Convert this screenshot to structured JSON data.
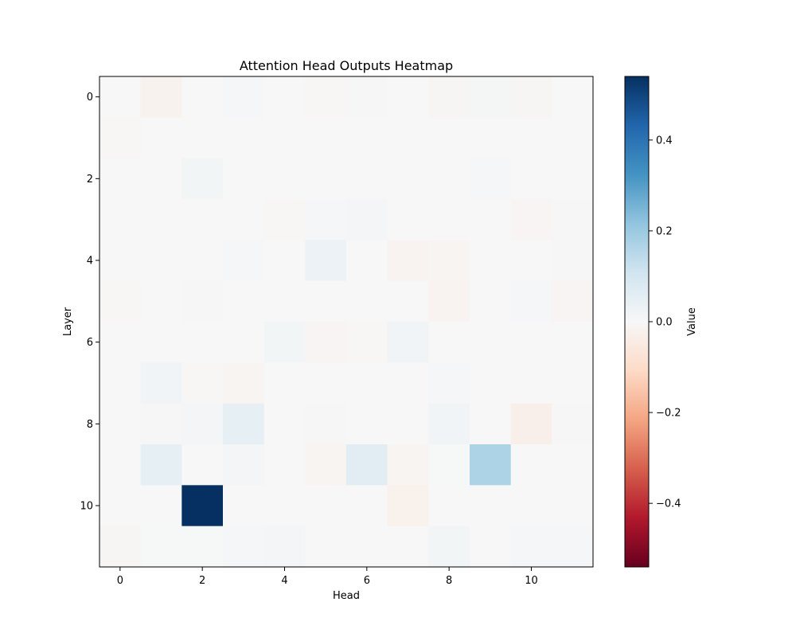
{
  "chart_data": {
    "type": "heatmap",
    "title": "Attention Head Outputs Heatmap",
    "xlabel": "Head",
    "ylabel": "Layer",
    "colorbar_label": "Value",
    "colormap": "RdBu",
    "vmin": -0.54,
    "vmax": 0.54,
    "x_tick_values": [
      0,
      2,
      4,
      6,
      8,
      10
    ],
    "y_tick_values": [
      0,
      2,
      4,
      6,
      8,
      10
    ],
    "x_tick_labels": [
      "0",
      "2",
      "4",
      "6",
      "8",
      "10"
    ],
    "y_tick_labels": [
      "0",
      "2",
      "4",
      "6",
      "8",
      "10"
    ],
    "colorbar_ticks": [
      0.4,
      0.2,
      0.0,
      -0.2,
      -0.4
    ],
    "colorbar_tick_labels": [
      "0.4",
      "0.2",
      "0.0",
      "−0.2",
      "−0.4"
    ],
    "grid": false,
    "rows": 12,
    "cols": 12,
    "values": [
      [
        0.0,
        -0.02,
        0.0,
        0.005,
        0.0,
        -0.005,
        -0.003,
        0.0,
        -0.008,
        0.008,
        -0.008,
        0.0
      ],
      [
        -0.005,
        0.0,
        0.0,
        0.0,
        0.0,
        0.0,
        0.0,
        0.0,
        0.0,
        0.0,
        0.0,
        0.0
      ],
      [
        0.0,
        0.0,
        0.015,
        0.0,
        0.0,
        0.0,
        0.0,
        0.0,
        0.0,
        0.005,
        0.0,
        0.0
      ],
      [
        0.0,
        0.0,
        0.0,
        0.0,
        -0.005,
        0.005,
        0.012,
        0.0,
        0.0,
        0.0,
        -0.01,
        0.004
      ],
      [
        0.0,
        0.0,
        0.0,
        0.005,
        0.0,
        0.03,
        0.0,
        -0.015,
        -0.012,
        0.0,
        0.0,
        0.004
      ],
      [
        -0.005,
        0.0,
        0.004,
        0.0,
        0.0,
        0.0,
        0.0,
        0.0,
        -0.015,
        0.0,
        0.005,
        -0.01
      ],
      [
        0.0,
        0.0,
        0.0,
        0.0,
        0.015,
        -0.01,
        -0.005,
        0.02,
        0.0,
        0.0,
        0.0,
        0.0
      ],
      [
        0.0,
        0.018,
        -0.004,
        -0.012,
        0.0,
        0.0,
        0.0,
        0.0,
        0.005,
        0.0,
        0.0,
        0.0
      ],
      [
        0.0,
        -0.003,
        0.01,
        0.05,
        0.0,
        0.004,
        0.0,
        0.0,
        0.018,
        0.0,
        -0.03,
        0.004
      ],
      [
        0.0,
        0.05,
        0.0,
        0.01,
        0.0,
        -0.012,
        0.06,
        -0.012,
        0.003,
        0.17,
        0.0,
        0.0
      ],
      [
        0.0,
        0.0,
        0.54,
        0.0,
        0.0,
        0.0,
        0.0,
        -0.025,
        0.0,
        0.0,
        0.0,
        0.0
      ],
      [
        -0.006,
        0.003,
        0.003,
        0.006,
        0.012,
        0.0,
        0.0,
        0.0,
        0.014,
        0.0,
        0.005,
        0.005
      ]
    ]
  }
}
